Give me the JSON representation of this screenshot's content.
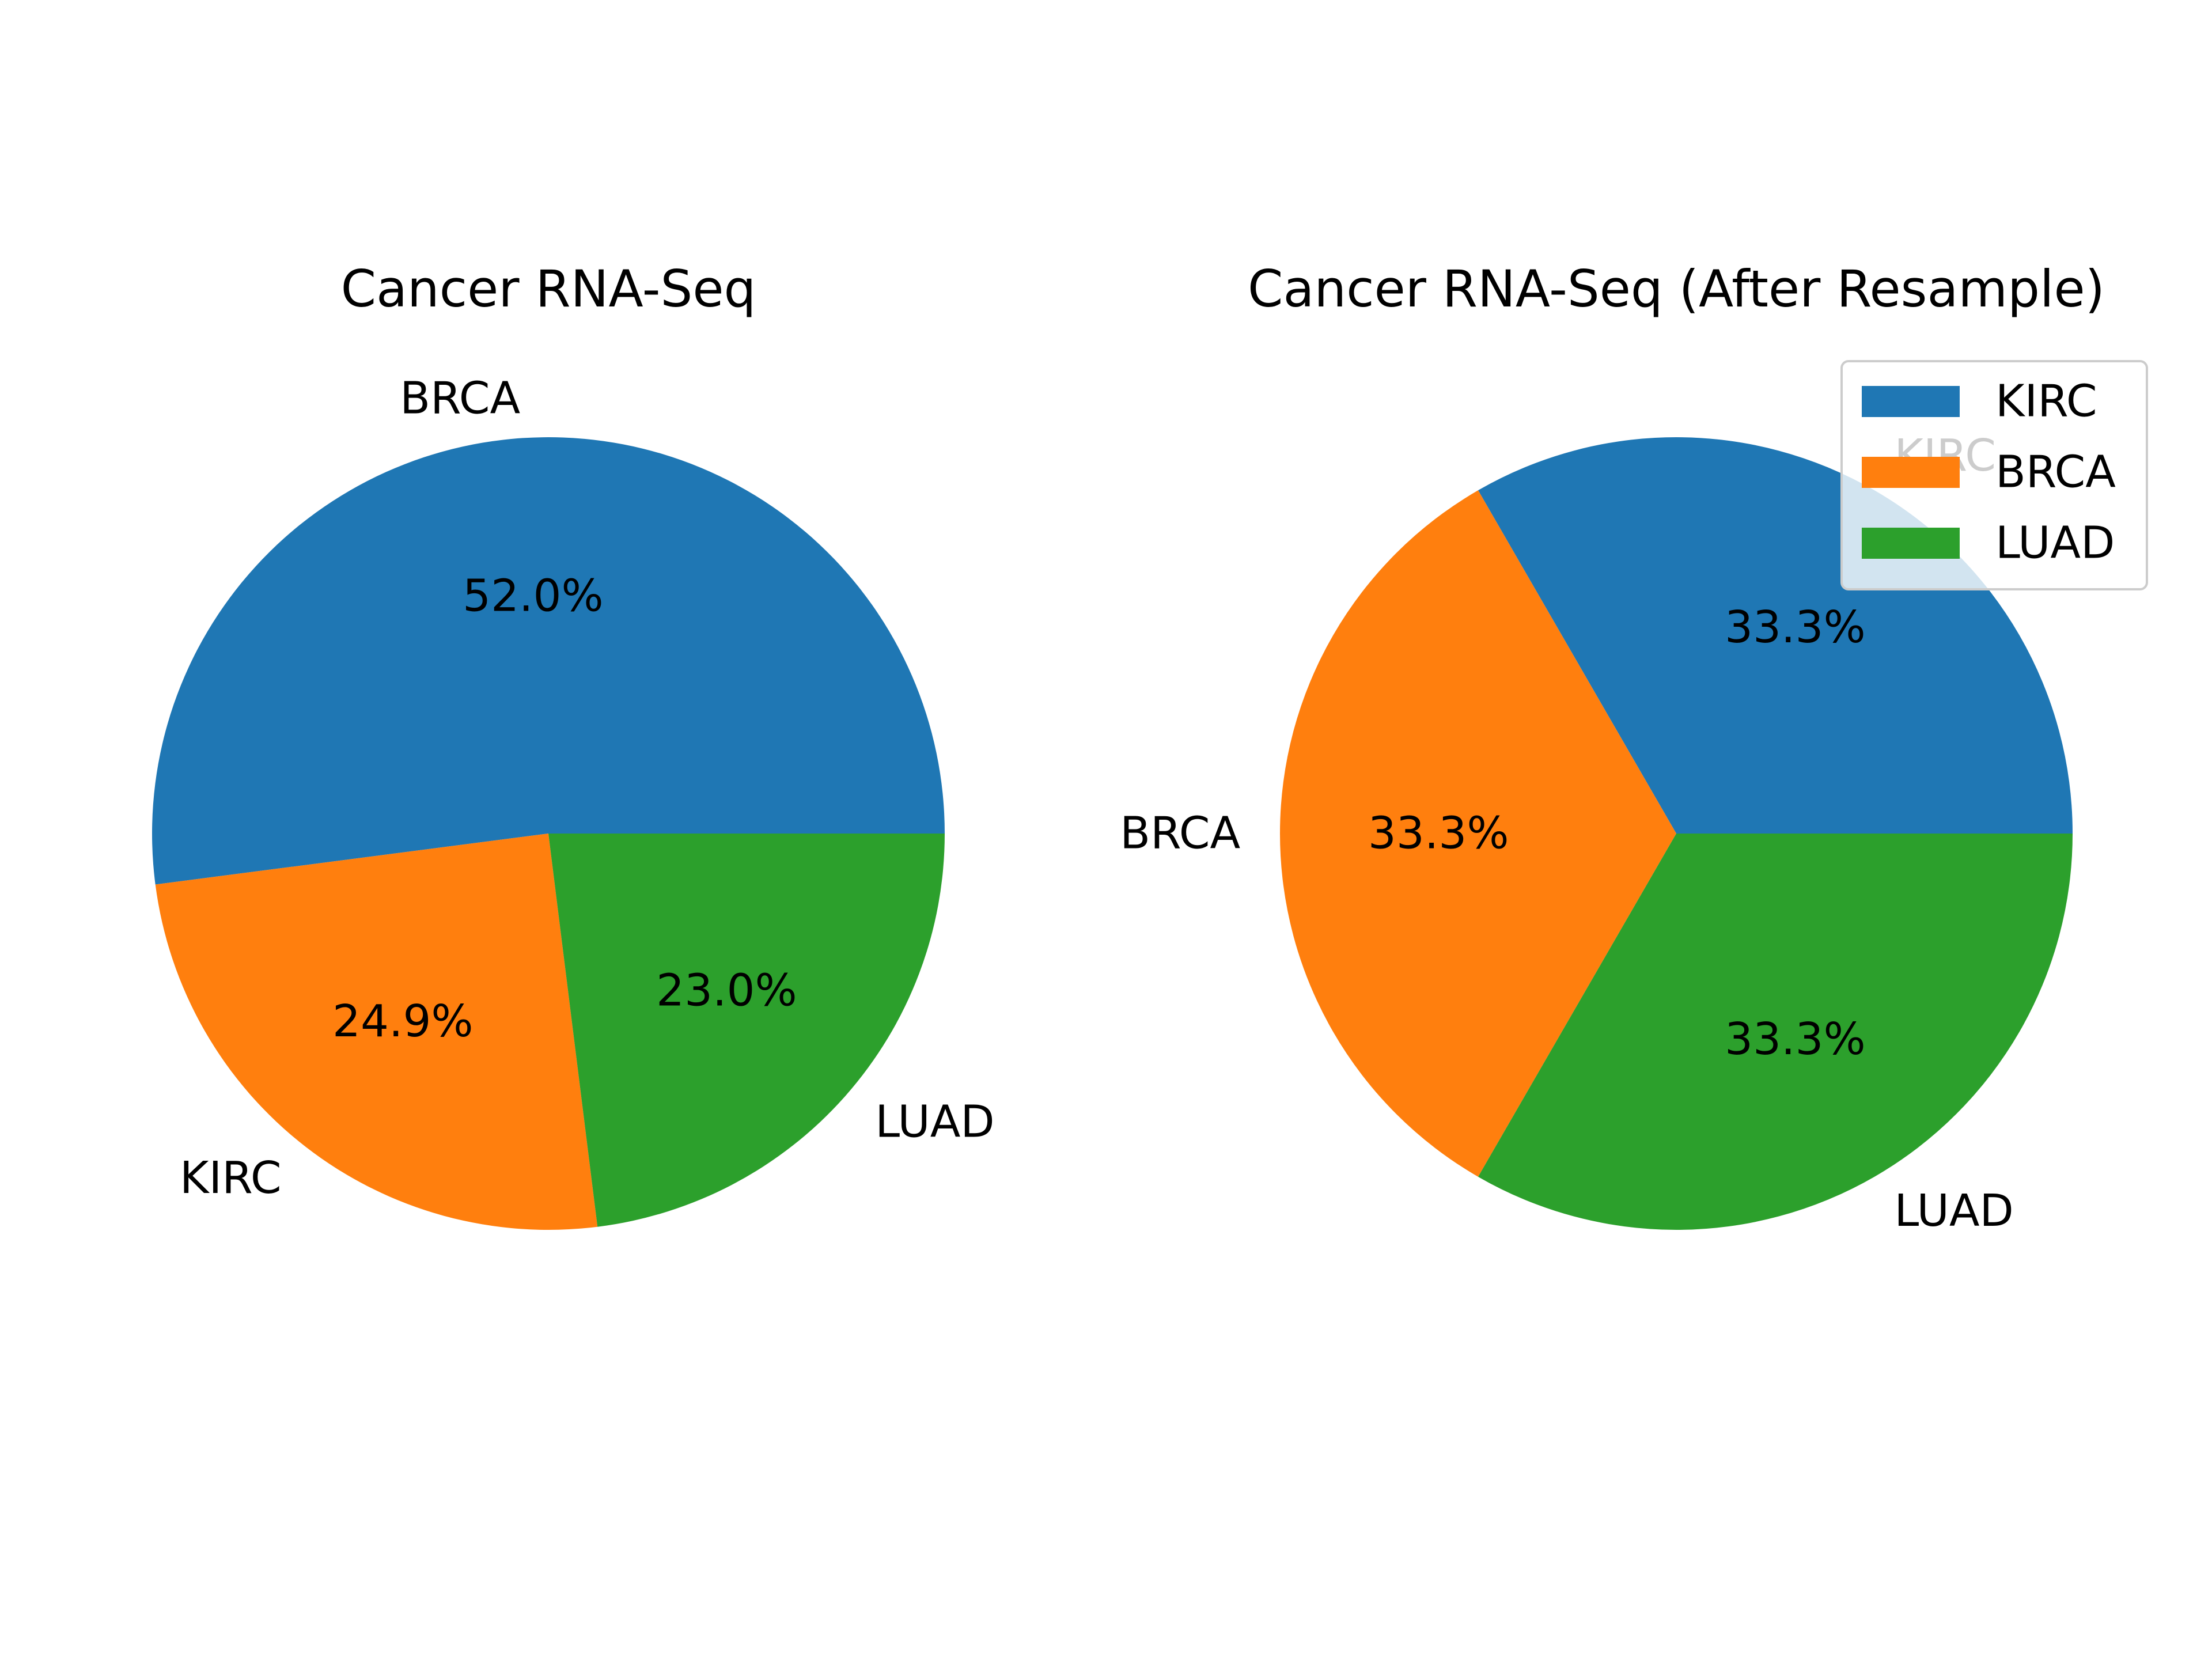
{
  "chart_data": [
    {
      "type": "pie",
      "title": "Cancer RNA-Seq",
      "slices": [
        {
          "label": "BRCA",
          "value": 52.0,
          "pct_label": "52.0%",
          "color": "#1f77b4"
        },
        {
          "label": "KIRC",
          "value": 24.9,
          "pct_label": "24.9%",
          "color": "#ff7f0e"
        },
        {
          "label": "LUAD",
          "value": 23.0,
          "pct_label": "23.0%",
          "color": "#2ca02c"
        }
      ],
      "start_angle_deg": 0,
      "direction": "counterclockwise",
      "legend": null
    },
    {
      "type": "pie",
      "title": "Cancer RNA-Seq (After Resample)",
      "slices": [
        {
          "label": "KIRC",
          "value": 33.3,
          "pct_label": "33.3%",
          "color": "#1f77b4"
        },
        {
          "label": "BRCA",
          "value": 33.3,
          "pct_label": "33.3%",
          "color": "#ff7f0e"
        },
        {
          "label": "LUAD",
          "value": 33.3,
          "pct_label": "33.3%",
          "color": "#2ca02c"
        }
      ],
      "start_angle_deg": 0,
      "direction": "counterclockwise",
      "legend": {
        "position": "upper right",
        "entries": [
          {
            "label": "KIRC",
            "color": "#1f77b4"
          },
          {
            "label": "BRCA",
            "color": "#ff7f0e"
          },
          {
            "label": "LUAD",
            "color": "#2ca02c"
          }
        ]
      }
    }
  ]
}
